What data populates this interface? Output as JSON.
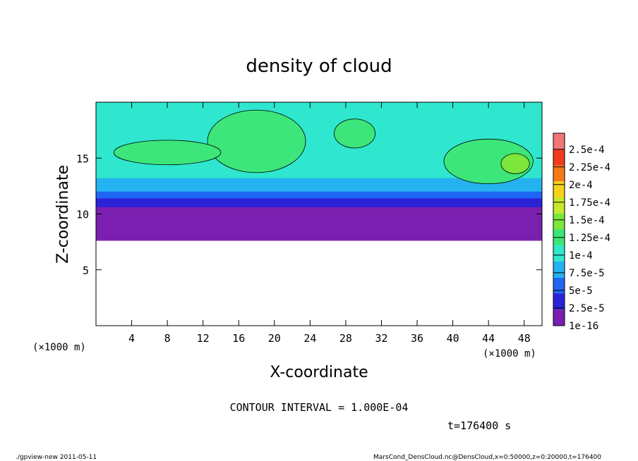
{
  "chart_data": {
    "type": "heatmap",
    "title": "density of cloud",
    "xlabel": "X-coordinate",
    "ylabel": "Z-coordinate",
    "x_unit": "(×1000 m)",
    "x_unit_right": "(×1000 m)",
    "xlim": [
      0,
      50
    ],
    "ylim": [
      0,
      20
    ],
    "x_ticks": [
      "4",
      "8",
      "12",
      "16",
      "20",
      "24",
      "28",
      "32",
      "36",
      "40",
      "44",
      "48"
    ],
    "x_tick_values": [
      4,
      8,
      12,
      16,
      20,
      24,
      28,
      32,
      36,
      40,
      44,
      48
    ],
    "y_ticks": [
      "5",
      "10",
      "15"
    ],
    "y_tick_values": [
      5,
      10,
      15
    ],
    "colorbar": {
      "labels": [
        "1e-16",
        "2.5e-5",
        "5e-5",
        "7.5e-5",
        "1e-4",
        "1.25e-4",
        "1.5e-4",
        "1.75e-4",
        "2e-4",
        "2.25e-4",
        "2.5e-4"
      ],
      "colors": [
        "#7a1fb0",
        "#2b23d6",
        "#1f66f2",
        "#24b2f0",
        "#2fe6cf",
        "#3ce67a",
        "#7ce63a",
        "#c8e82c",
        "#f6d21c",
        "#f57a16",
        "#f03a22",
        "#f07878"
      ]
    },
    "contour_interval_text": "CONTOUR INTERVAL = 1.000E-04",
    "time_text": "t=176400  s",
    "footer_left": "./gpview-new  2011-05-11",
    "footer_right": "MarsCond_DensCloud.nc@DensCloud,x=0:50000,z=0:20000,t=176400",
    "regions": [
      {
        "name": "purple-base-layer",
        "color": "#7a1fb0",
        "x": [
          0,
          50
        ],
        "z": [
          7.6,
          11.0
        ]
      },
      {
        "name": "blue-transition-band",
        "color": "#2b23d6",
        "x": [
          0,
          50
        ],
        "z": [
          10.6,
          11.6
        ]
      },
      {
        "name": "light-blue-band",
        "color": "#1f66f2",
        "x": [
          0,
          50
        ],
        "z": [
          11.4,
          12.2
        ]
      },
      {
        "name": "cyan-layer",
        "color": "#24b2f0",
        "x": [
          0,
          50
        ],
        "z": [
          12.0,
          13.4
        ]
      },
      {
        "name": "teal-layer",
        "color": "#2fe6cf",
        "x": [
          0,
          50
        ],
        "z": [
          13.2,
          20.0
        ]
      },
      {
        "name": "green-cloud-16",
        "color": "#3ce67a",
        "cx": 18,
        "cz": 16.5,
        "rx": 5.5,
        "rz": 2.8
      },
      {
        "name": "green-cloud-8",
        "color": "#3ce67a",
        "cx": 8,
        "cz": 15.5,
        "rx": 6.0,
        "rz": 1.1
      },
      {
        "name": "green-cloud-29",
        "color": "#3ce67a",
        "cx": 29,
        "cz": 17.2,
        "rx": 2.3,
        "rz": 1.3
      },
      {
        "name": "green-cloud-44",
        "color": "#3ce67a",
        "cx": 44,
        "cz": 14.7,
        "rx": 5.0,
        "rz": 2.0
      },
      {
        "name": "yellow-green-core-46",
        "color": "#7ce63a",
        "cx": 47,
        "cz": 14.5,
        "rx": 1.6,
        "rz": 0.9
      }
    ]
  }
}
